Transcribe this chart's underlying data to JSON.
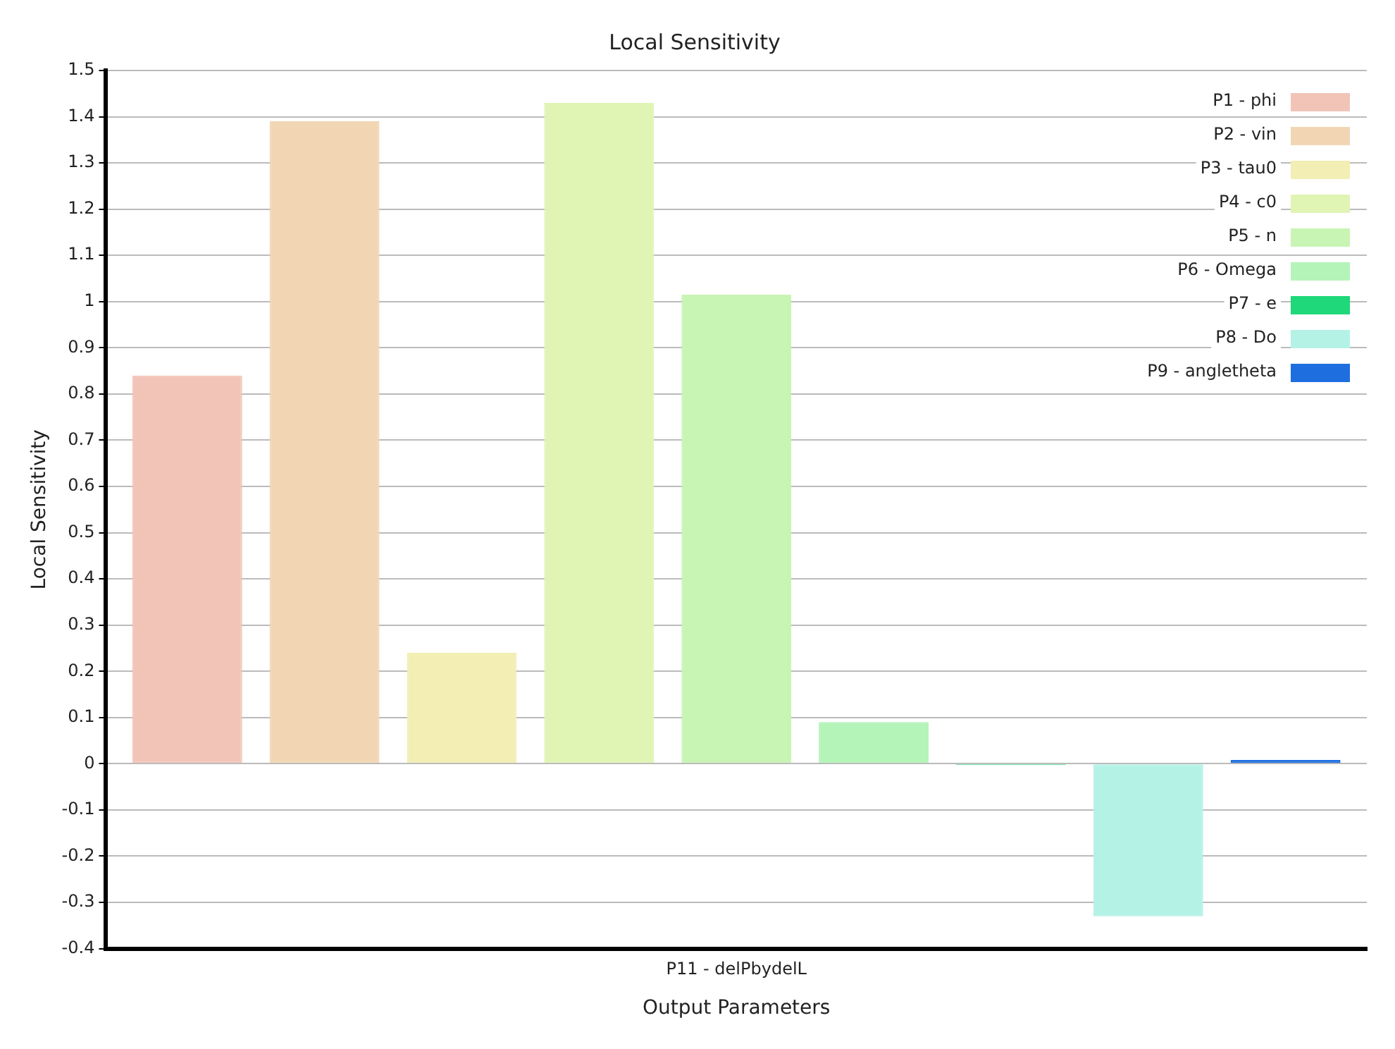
{
  "chart_data": {
    "type": "bar",
    "title": "Local Sensitivity",
    "xlabel": "Output Parameters",
    "ylabel": "Local Sensitivity",
    "categories": [
      "P11 - delPbydelL"
    ],
    "series": [
      {
        "name": "P1 - phi",
        "color": "#f2c4b8",
        "values": [
          0.84
        ]
      },
      {
        "name": "P2 - vin",
        "color": "#f2d6b4",
        "values": [
          1.39
        ]
      },
      {
        "name": "P3 - tau0",
        "color": "#f2eeb4",
        "values": [
          0.24
        ]
      },
      {
        "name": "P4 - c0",
        "color": "#e0f4b4",
        "values": [
          1.43
        ]
      },
      {
        "name": "P5 - n",
        "color": "#c8f4b4",
        "values": [
          1.015
        ]
      },
      {
        "name": "P6 - Omega",
        "color": "#b4f4b8",
        "values": [
          0.09
        ]
      },
      {
        "name": "P7 - e",
        "color": "#1ed87a",
        "values": [
          -0.003
        ]
      },
      {
        "name": "P8 - Do",
        "color": "#b4f2e6",
        "values": [
          -0.33
        ]
      },
      {
        "name": "P9 - angletheta",
        "color": "#1e6ee0",
        "values": [
          0.008
        ]
      }
    ],
    "ylim": [
      -0.4,
      1.5
    ],
    "yticks": [
      -0.4,
      -0.3,
      -0.2,
      -0.1,
      0,
      0.1,
      0.2,
      0.3,
      0.4,
      0.5,
      0.6,
      0.7,
      0.8,
      0.9,
      1,
      1.1,
      1.2,
      1.3,
      1.4,
      1.5
    ],
    "grid": "y",
    "legend": "top right"
  }
}
